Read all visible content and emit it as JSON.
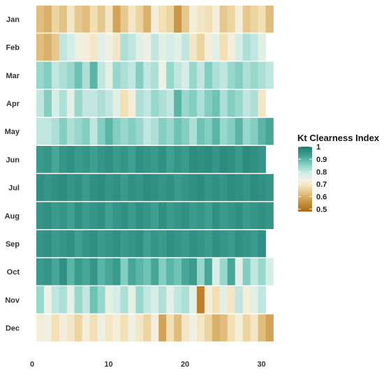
{
  "chart_data": {
    "type": "heatmap",
    "x_ticks": [
      "0",
      "10",
      "20",
      "30"
    ],
    "x_range": [
      0,
      31
    ],
    "rows": [
      "Jan",
      "Feb",
      "Mar",
      "Apr",
      "May",
      "Jun",
      "Jul",
      "Aug",
      "Sep",
      "Oct",
      "Nov",
      "Dec"
    ],
    "legend": {
      "title": "Kt Clearness Index",
      "ticks": [
        "1",
        "0.9",
        "0.8",
        "0.7",
        "0.6",
        "0.5"
      ],
      "tick_values": [
        1.0,
        0.9,
        0.8,
        0.7,
        0.6,
        0.5
      ],
      "range": [
        0.48,
        1.0
      ]
    },
    "colorscale": [
      {
        "v": 0.48,
        "c": "#a9691c"
      },
      {
        "v": 0.55,
        "c": "#c88f3c"
      },
      {
        "v": 0.62,
        "c": "#e0bd7c"
      },
      {
        "v": 0.68,
        "c": "#f2dfb4"
      },
      {
        "v": 0.73,
        "c": "#f5f1e3"
      },
      {
        "v": 0.78,
        "c": "#d4ede7"
      },
      {
        "v": 0.83,
        "c": "#a3dcd2"
      },
      {
        "v": 0.88,
        "c": "#6ec3b5"
      },
      {
        "v": 0.93,
        "c": "#3f9f91"
      },
      {
        "v": 1.0,
        "c": "#1f7d70"
      }
    ],
    "values": {
      "Jan": [
        0.62,
        0.6,
        0.66,
        0.63,
        0.7,
        0.64,
        0.62,
        0.68,
        0.64,
        0.7,
        0.58,
        0.64,
        0.7,
        0.66,
        0.6,
        0.72,
        0.68,
        0.66,
        0.56,
        0.64,
        0.72,
        0.7,
        0.68,
        0.72,
        0.64,
        0.66,
        0.72,
        0.64,
        0.66,
        0.68,
        0.62
      ],
      "Feb": [
        0.62,
        0.6,
        0.64,
        0.8,
        0.78,
        0.74,
        0.72,
        0.7,
        0.76,
        0.74,
        0.7,
        0.82,
        0.8,
        0.76,
        0.74,
        0.8,
        0.76,
        0.78,
        0.76,
        0.8,
        0.7,
        0.66,
        0.72,
        0.76,
        0.68,
        0.72,
        0.78,
        0.82,
        0.8,
        0.76
      ],
      "Mar": [
        0.84,
        0.86,
        0.8,
        0.82,
        0.84,
        0.88,
        0.82,
        0.9,
        0.8,
        0.76,
        0.84,
        0.82,
        0.8,
        0.86,
        0.8,
        0.82,
        0.74,
        0.84,
        0.8,
        0.78,
        0.84,
        0.8,
        0.86,
        0.82,
        0.8,
        0.84,
        0.86,
        0.82,
        0.84,
        0.82,
        0.8
      ],
      "Apr": [
        0.8,
        0.86,
        0.78,
        0.82,
        0.76,
        0.84,
        0.8,
        0.8,
        0.82,
        0.8,
        0.76,
        0.68,
        0.72,
        0.82,
        0.8,
        0.84,
        0.82,
        0.8,
        0.9,
        0.84,
        0.86,
        0.82,
        0.86,
        0.88,
        0.82,
        0.86,
        0.84,
        0.8,
        0.82,
        0.7
      ],
      "May": [
        0.8,
        0.8,
        0.82,
        0.86,
        0.82,
        0.84,
        0.86,
        0.8,
        0.86,
        0.9,
        0.86,
        0.84,
        0.86,
        0.84,
        0.8,
        0.82,
        0.86,
        0.84,
        0.88,
        0.86,
        0.82,
        0.88,
        0.86,
        0.9,
        0.84,
        0.86,
        0.9,
        0.84,
        0.86,
        0.9,
        0.92
      ],
      "Jun": [
        0.94,
        0.95,
        0.92,
        0.95,
        0.96,
        0.94,
        0.95,
        0.93,
        0.95,
        0.96,
        0.94,
        0.95,
        0.93,
        0.96,
        0.95,
        0.94,
        0.96,
        0.93,
        0.95,
        0.94,
        0.97,
        0.96,
        0.97,
        0.95,
        0.97,
        0.96,
        0.94,
        0.97,
        0.96,
        0.95
      ],
      "Jul": [
        0.96,
        0.95,
        0.96,
        0.97,
        0.95,
        0.96,
        0.94,
        0.96,
        0.97,
        0.95,
        0.96,
        0.94,
        0.96,
        0.95,
        0.97,
        0.96,
        0.95,
        0.96,
        0.94,
        0.95,
        0.96,
        0.97,
        0.95,
        0.96,
        0.95,
        0.97,
        0.96,
        0.95,
        0.97,
        0.96,
        0.95
      ],
      "Aug": [
        0.95,
        0.96,
        0.94,
        0.95,
        0.93,
        0.96,
        0.94,
        0.95,
        0.96,
        0.93,
        0.95,
        0.96,
        0.94,
        0.96,
        0.95,
        0.93,
        0.96,
        0.94,
        0.95,
        0.96,
        0.94,
        0.95,
        0.93,
        0.96,
        0.94,
        0.95,
        0.96,
        0.94,
        0.95,
        0.96,
        0.95
      ],
      "Sep": [
        0.95,
        0.96,
        0.94,
        0.95,
        0.96,
        0.93,
        0.95,
        0.96,
        0.94,
        0.95,
        0.96,
        0.94,
        0.95,
        0.96,
        0.93,
        0.95,
        0.94,
        0.96,
        0.95,
        0.94,
        0.96,
        0.95,
        0.94,
        0.96,
        0.95,
        0.94,
        0.96,
        0.95,
        0.94,
        0.96
      ],
      "Oct": [
        0.94,
        0.95,
        0.92,
        0.96,
        0.9,
        0.94,
        0.92,
        0.95,
        0.9,
        0.92,
        0.94,
        0.86,
        0.92,
        0.9,
        0.88,
        0.92,
        0.86,
        0.9,
        0.88,
        0.92,
        0.94,
        0.84,
        0.92,
        0.78,
        0.84,
        0.92,
        0.76,
        0.86,
        0.8,
        0.84,
        0.78
      ],
      "Nov": [
        0.84,
        0.74,
        0.8,
        0.82,
        0.76,
        0.84,
        0.8,
        0.88,
        0.84,
        0.76,
        0.78,
        0.82,
        0.76,
        0.84,
        0.8,
        0.78,
        0.82,
        0.76,
        0.8,
        0.82,
        0.76,
        0.52,
        0.72,
        0.68,
        0.76,
        0.7,
        0.8,
        0.72,
        0.76,
        0.8
      ],
      "Dec": [
        0.72,
        0.74,
        0.68,
        0.72,
        0.7,
        0.66,
        0.72,
        0.68,
        0.74,
        0.7,
        0.72,
        0.68,
        0.74,
        0.7,
        0.66,
        0.72,
        0.58,
        0.68,
        0.62,
        0.7,
        0.74,
        0.7,
        0.66,
        0.6,
        0.62,
        0.68,
        0.72,
        0.66,
        0.7,
        0.62,
        0.58
      ]
    }
  }
}
